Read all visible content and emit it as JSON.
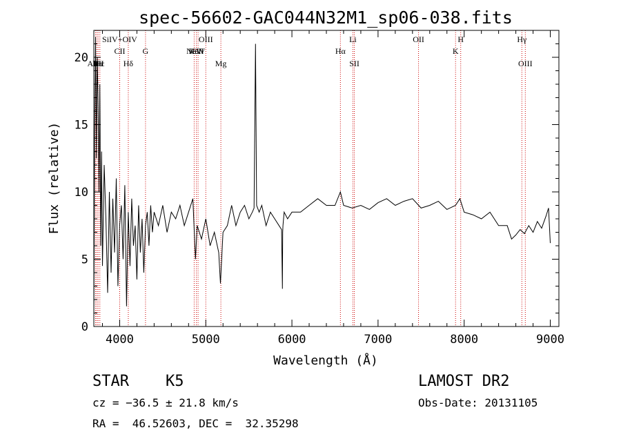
{
  "chart_data": {
    "type": "line",
    "title": "spec-56602-GAC044N32M1_sp06-038.fits",
    "xlabel": "Wavelength (Å)",
    "ylabel": "Flux (relative)",
    "xlim": [
      3700,
      9100
    ],
    "ylim": [
      0,
      22
    ],
    "xticks": [
      4000,
      5000,
      6000,
      7000,
      8000,
      9000
    ],
    "yticks": [
      0,
      5,
      10,
      15,
      20
    ],
    "series": [
      {
        "name": "spectrum",
        "x": [
          3700,
          3710,
          3720,
          3730,
          3740,
          3750,
          3760,
          3770,
          3780,
          3790,
          3800,
          3820,
          3840,
          3860,
          3880,
          3900,
          3920,
          3940,
          3960,
          3980,
          4000,
          4020,
          4040,
          4060,
          4080,
          4100,
          4120,
          4140,
          4160,
          4180,
          4200,
          4220,
          4240,
          4260,
          4280,
          4300,
          4320,
          4340,
          4360,
          4380,
          4400,
          4450,
          4500,
          4550,
          4600,
          4650,
          4700,
          4750,
          4800,
          4850,
          4880,
          4900,
          4950,
          5000,
          5050,
          5100,
          5150,
          5170,
          5200,
          5250,
          5300,
          5350,
          5400,
          5450,
          5500,
          5540,
          5560,
          5577,
          5590,
          5620,
          5650,
          5700,
          5750,
          5800,
          5850,
          5880,
          5890,
          5893,
          5896,
          5910,
          5950,
          6000,
          6100,
          6200,
          6300,
          6400,
          6500,
          6563,
          6600,
          6700,
          6800,
          6900,
          7000,
          7100,
          7200,
          7300,
          7400,
          7500,
          7600,
          7700,
          7800,
          7900,
          7950,
          8000,
          8100,
          8200,
          8300,
          8400,
          8500,
          8550,
          8600,
          8650,
          8700,
          8750,
          8800,
          8850,
          8900,
          8950,
          8980,
          9000
        ],
        "y": [
          0.4,
          14.5,
          21.5,
          12.5,
          20.0,
          16.5,
          10.0,
          18.0,
          6.0,
          13.0,
          4.5,
          12.0,
          8.0,
          2.5,
          10.0,
          4.0,
          9.5,
          5.5,
          11.0,
          3.0,
          7.5,
          9.0,
          5.0,
          10.5,
          1.5,
          8.5,
          4.5,
          9.5,
          6.0,
          7.5,
          3.5,
          9.0,
          5.5,
          8.0,
          4.0,
          7.5,
          8.5,
          6.0,
          9.0,
          7.0,
          8.5,
          7.5,
          9.0,
          7.0,
          8.5,
          8.0,
          9.0,
          7.5,
          8.5,
          9.5,
          5.0,
          7.5,
          6.5,
          8.0,
          6.0,
          7.0,
          5.5,
          3.2,
          7.0,
          7.5,
          9.0,
          7.5,
          8.5,
          9.0,
          8.0,
          8.5,
          8.8,
          21.0,
          9.0,
          8.5,
          9.0,
          7.5,
          8.5,
          8.0,
          7.5,
          7.2,
          2.8,
          7.0,
          7.5,
          8.5,
          8.0,
          8.5,
          8.5,
          9.0,
          9.5,
          9.0,
          9.0,
          10.0,
          9.0,
          8.8,
          9.0,
          8.7,
          9.2,
          9.5,
          9.0,
          9.3,
          9.5,
          8.8,
          9.0,
          9.3,
          8.7,
          9.0,
          9.5,
          8.5,
          8.3,
          8.0,
          8.5,
          7.5,
          7.5,
          6.5,
          6.8,
          7.2,
          6.9,
          7.5,
          7.0,
          7.8,
          7.3,
          8.2,
          8.8,
          6.2
        ]
      }
    ],
    "lines": [
      {
        "label": "AlIII",
        "x": 3720,
        "row": 2
      },
      {
        "label": "NI",
        "x": 3735,
        "row": 2
      },
      {
        "label": "Hε",
        "x": 3750,
        "row": 2
      },
      {
        "label": "Hε",
        "x": 3770,
        "row": 2
      },
      {
        "label": "SiIV+OIV",
        "x": 4000,
        "row": 0
      },
      {
        "label": "CII",
        "x": 4000,
        "row": 1
      },
      {
        "label": "Hδ",
        "x": 4100,
        "row": 2
      },
      {
        "label": "G",
        "x": 4300,
        "row": 1
      },
      {
        "label": "NeV",
        "x": 4865,
        "row": 1
      },
      {
        "label": "HeII",
        "x": 4890,
        "row": 1
      },
      {
        "label": "CIV",
        "x": 4910,
        "row": 1
      },
      {
        "label": "OIII",
        "x": 5000,
        "row": 0
      },
      {
        "label": "Mg",
        "x": 5175,
        "row": 2
      },
      {
        "label": "Hα",
        "x": 6563,
        "row": 1
      },
      {
        "label": "Li",
        "x": 6708,
        "row": 0
      },
      {
        "label": "SII",
        "x": 6725,
        "row": 2
      },
      {
        "label": "OII",
        "x": 7470,
        "row": 0
      },
      {
        "label": "H",
        "x": 7960,
        "row": 0
      },
      {
        "label": "K",
        "x": 7900,
        "row": 1
      },
      {
        "label": "Hγ",
        "x": 8670,
        "row": 0
      },
      {
        "label": "OIII",
        "x": 8710,
        "row": 2
      }
    ]
  },
  "info": {
    "obj_class": "STAR",
    "subclass": "K5",
    "survey": "LAMOST DR2",
    "cz": "cz = −36.5 ± 21.8 km/s",
    "obs_date": "Obs-Date: 20131105",
    "radec": "RA =  46.52603, DEC =  32.35298"
  },
  "colors": {
    "line_marker": "#cc0000",
    "spectrum": "#000000"
  }
}
